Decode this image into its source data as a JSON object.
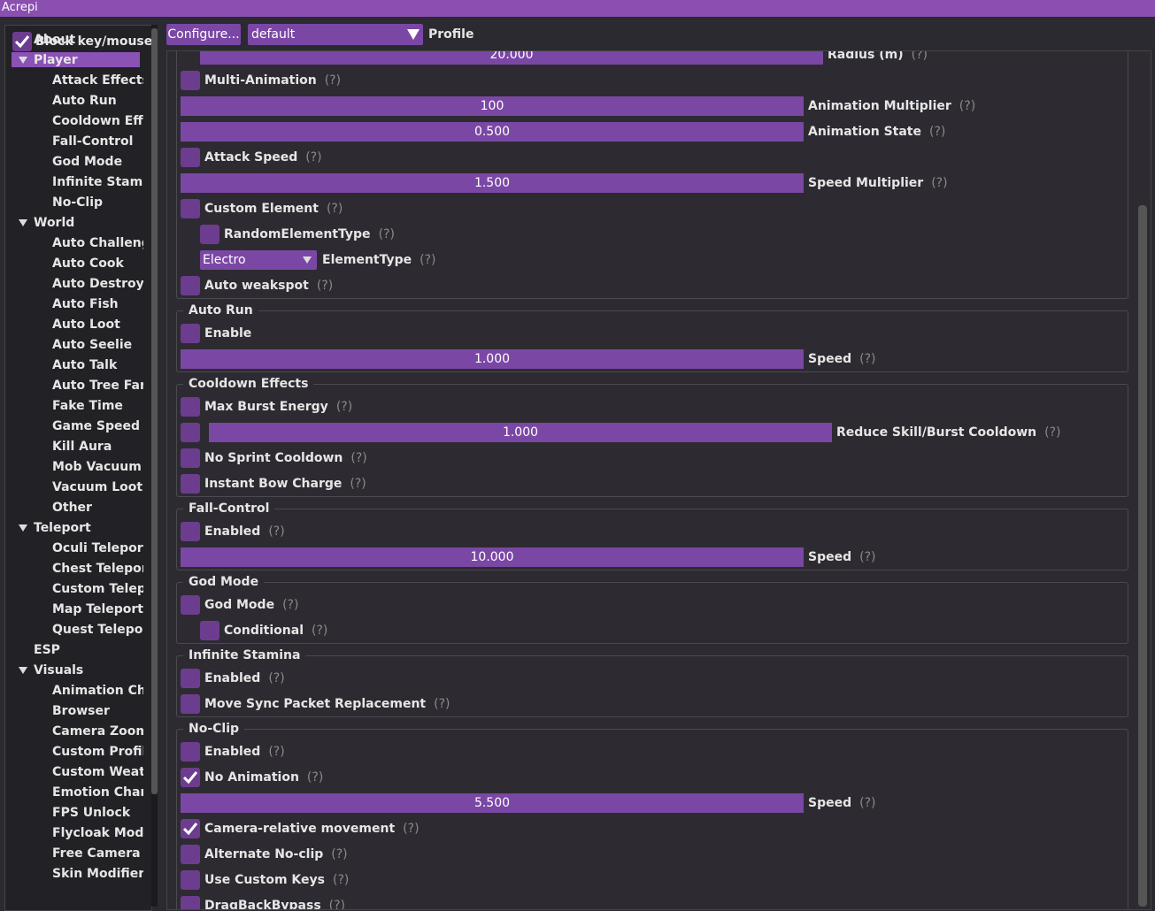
{
  "window": {
    "title": "Acrepi"
  },
  "help_marker": "(?)",
  "sidebar": {
    "block_input": {
      "label": "Block key/mouse",
      "checked": true
    },
    "items": [
      {
        "label": "About",
        "level": 0
      },
      {
        "label": "Player",
        "level": 0,
        "group": true,
        "selected": true
      },
      {
        "label": "Attack Effects",
        "level": 1
      },
      {
        "label": "Auto Run",
        "level": 1
      },
      {
        "label": "Cooldown Effects",
        "level": 1
      },
      {
        "label": "Fall-Control",
        "level": 1
      },
      {
        "label": "God Mode",
        "level": 1
      },
      {
        "label": "Infinite Stamina",
        "level": 1
      },
      {
        "label": "No-Clip",
        "level": 1
      },
      {
        "label": "World",
        "level": 0,
        "group": true
      },
      {
        "label": "Auto Challenge",
        "level": 1
      },
      {
        "label": "Auto Cook",
        "level": 1
      },
      {
        "label": "Auto Destroy Objects",
        "level": 1
      },
      {
        "label": "Auto Fish",
        "level": 1
      },
      {
        "label": "Auto Loot",
        "level": 1
      },
      {
        "label": "Auto Seelie",
        "level": 1
      },
      {
        "label": "Auto Talk",
        "level": 1
      },
      {
        "label": "Auto Tree Farm",
        "level": 1
      },
      {
        "label": "Fake Time",
        "level": 1
      },
      {
        "label": "Game Speed",
        "level": 1
      },
      {
        "label": "Kill Aura",
        "level": 1
      },
      {
        "label": "Mob Vacuum",
        "level": 1
      },
      {
        "label": "Vacuum Loot",
        "level": 1
      },
      {
        "label": "Other",
        "level": 1
      },
      {
        "label": "Teleport",
        "level": 0,
        "group": true
      },
      {
        "label": "Oculi Teleport",
        "level": 1
      },
      {
        "label": "Chest Teleport",
        "level": 1
      },
      {
        "label": "Custom Teleports",
        "level": 1
      },
      {
        "label": "Map Teleport",
        "level": 1
      },
      {
        "label": "Quest Teleport",
        "level": 1
      },
      {
        "label": "ESP",
        "level": 0
      },
      {
        "label": "Visuals",
        "level": 0,
        "group": true
      },
      {
        "label": "Animation Changer",
        "level": 1
      },
      {
        "label": "Browser",
        "level": 1
      },
      {
        "label": "Camera Zoom",
        "level": 1
      },
      {
        "label": "Custom Profile",
        "level": 1
      },
      {
        "label": "Custom Weather",
        "level": 1
      },
      {
        "label": "Emotion Changer",
        "level": 1
      },
      {
        "label": "FPS Unlock",
        "level": 1
      },
      {
        "label": "Flycloak Modifier",
        "level": 1
      },
      {
        "label": "Free Camera",
        "level": 1
      },
      {
        "label": "Skin Modifier",
        "level": 1
      }
    ]
  },
  "toolbar": {
    "button": "Configure...",
    "profile_value": "default",
    "profile_label": "Profile"
  },
  "sections": [
    {
      "rows": [
        {
          "kind": "slider",
          "value": "20.000",
          "label": "Radius (m)",
          "indent": 1,
          "help": true
        },
        {
          "kind": "checkbox",
          "label": "Multi-Animation",
          "checked": false,
          "indent": 0,
          "help": true
        },
        {
          "kind": "slider",
          "value": "100",
          "label": "Animation Multiplier",
          "indent": 0,
          "help": true
        },
        {
          "kind": "slider",
          "value": "0.500",
          "label": "Animation State",
          "indent": 0,
          "help": true
        },
        {
          "kind": "checkbox",
          "label": "Attack Speed",
          "checked": false,
          "indent": 0,
          "help": true
        },
        {
          "kind": "slider",
          "value": "1.500",
          "label": "Speed Multiplier",
          "indent": 0,
          "help": true
        },
        {
          "kind": "checkbox",
          "label": "Custom Element",
          "checked": false,
          "indent": 0,
          "help": true
        },
        {
          "kind": "checkbox",
          "label": "RandomElementType",
          "checked": false,
          "indent": 1,
          "help": true
        },
        {
          "kind": "combo",
          "value": "Electro",
          "label": "ElementType",
          "indent": 1,
          "help": true
        },
        {
          "kind": "checkbox",
          "label": "Auto weakspot",
          "checked": false,
          "indent": 0,
          "help": true
        }
      ]
    },
    {
      "title": "Auto Run",
      "rows": [
        {
          "kind": "checkbox",
          "label": "Enable",
          "checked": false,
          "indent": 0,
          "help": false
        },
        {
          "kind": "slider",
          "value": "1.000",
          "label": "Speed",
          "indent": 0,
          "help": true
        }
      ]
    },
    {
      "title": "Cooldown Effects",
      "rows": [
        {
          "kind": "checkbox",
          "label": "Max Burst Energy",
          "checked": false,
          "indent": 0,
          "help": true
        },
        {
          "kind": "check-slider",
          "checked": false,
          "value": "1.000",
          "label": "Reduce Skill/Burst Cooldown",
          "indent": 0,
          "help": true
        },
        {
          "kind": "checkbox",
          "label": "No Sprint Cooldown",
          "checked": false,
          "indent": 0,
          "help": true
        },
        {
          "kind": "checkbox",
          "label": "Instant Bow Charge",
          "checked": false,
          "indent": 0,
          "help": true
        }
      ]
    },
    {
      "title": "Fall-Control",
      "rows": [
        {
          "kind": "checkbox",
          "label": "Enabled",
          "checked": false,
          "indent": 0,
          "help": true
        },
        {
          "kind": "slider",
          "value": "10.000",
          "label": "Speed",
          "indent": 0,
          "help": true
        }
      ]
    },
    {
      "title": "God Mode",
      "rows": [
        {
          "kind": "checkbox",
          "label": "God Mode",
          "checked": false,
          "indent": 0,
          "help": true
        },
        {
          "kind": "checkbox",
          "label": "Conditional",
          "checked": false,
          "indent": 1,
          "help": true
        }
      ]
    },
    {
      "title": "Infinite Stamina",
      "rows": [
        {
          "kind": "checkbox",
          "label": "Enabled",
          "checked": false,
          "indent": 0,
          "help": true
        },
        {
          "kind": "checkbox",
          "label": "Move Sync Packet Replacement",
          "checked": false,
          "indent": 0,
          "help": true
        }
      ]
    },
    {
      "title": "No-Clip",
      "rows": [
        {
          "kind": "checkbox",
          "label": "Enabled",
          "checked": false,
          "indent": 0,
          "help": true
        },
        {
          "kind": "checkbox",
          "label": "No Animation",
          "checked": true,
          "indent": 0,
          "help": true
        },
        {
          "kind": "slider",
          "value": "5.500",
          "label": "Speed",
          "indent": 0,
          "help": true
        },
        {
          "kind": "checkbox",
          "label": "Camera-relative movement",
          "checked": true,
          "indent": 0,
          "help": true
        },
        {
          "kind": "checkbox",
          "label": "Alternate No-clip",
          "checked": false,
          "indent": 0,
          "help": true
        },
        {
          "kind": "checkbox",
          "label": "Use Custom Keys",
          "checked": false,
          "indent": 0,
          "help": true
        },
        {
          "kind": "checkbox",
          "label": "DragBackBypass",
          "checked": false,
          "indent": 0,
          "help": true
        }
      ]
    }
  ]
}
